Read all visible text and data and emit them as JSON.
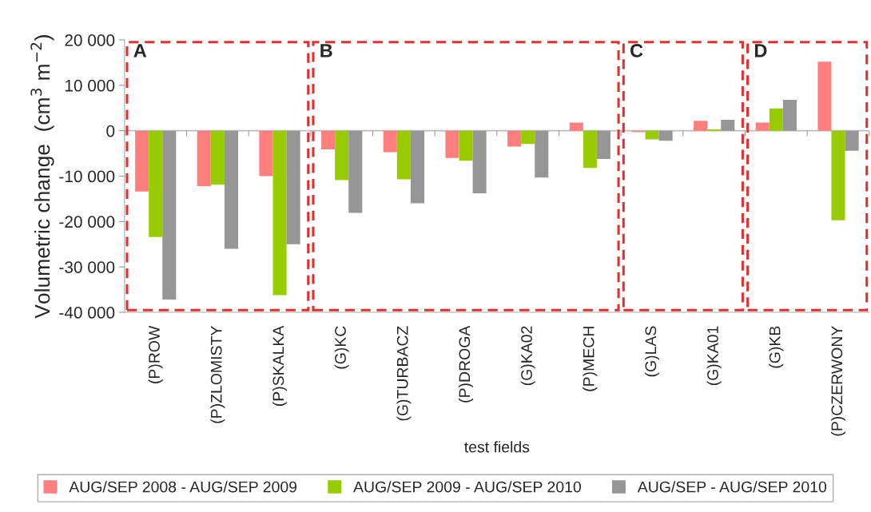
{
  "chart_data": {
    "type": "bar",
    "xlabel": "test fields",
    "ylabel": "Volumetric change  (cm$^{3}$ m$^{−2}$)",
    "categories": [
      "(P)ROW",
      "(P)ZLOMISTY",
      "(P)SKALKA",
      "(G)KC",
      "(G)TURBACZ",
      "(P)DROGA",
      "(G)KA02",
      "(P)MECH",
      "(G)LAS",
      "(G)KA01",
      "(G)KB",
      "(P)CZERWONY"
    ],
    "series": [
      {
        "name": "AUG/SEP 2008 - AUG/SEP 2009",
        "color": "#ff7f7f",
        "values": [
          -13400,
          -12200,
          -10000,
          -4100,
          -4700,
          -6000,
          -3500,
          1800,
          -300,
          2200,
          1800,
          15200
        ]
      },
      {
        "name": "AUG/SEP 2009 - AUG/SEP 2010",
        "color": "#99cc00",
        "values": [
          -23400,
          -11900,
          -36200,
          -10900,
          -10700,
          -6600,
          -2900,
          -8200,
          -1900,
          300,
          4900,
          -19700
        ]
      },
      {
        "name": "AUG/SEP - AUG/SEP 2010",
        "color": "#969696",
        "values": [
          -37200,
          -26000,
          -25000,
          -18100,
          -16000,
          -13800,
          -10300,
          -6200,
          -2200,
          2400,
          6800,
          -4400
        ]
      }
    ],
    "ylim": [
      -40000,
      20000
    ],
    "yticks": [
      {
        "value": -40000,
        "label": "-40 000"
      },
      {
        "value": -30000,
        "label": "-30 000"
      },
      {
        "value": -20000,
        "label": "-20 000"
      },
      {
        "value": -10000,
        "label": "-10 000"
      },
      0,
      {
        "value": 10000,
        "label": "10 000"
      },
      {
        "value": 20000,
        "label": "20 000"
      }
    ],
    "annotations": [
      "A",
      "B",
      "C",
      "D"
    ],
    "ref_lines": [
      {
        "axis": "y",
        "value": 0,
        "color": "#bbbbbb"
      }
    ],
    "grid": false,
    "legend": "bottom"
  }
}
